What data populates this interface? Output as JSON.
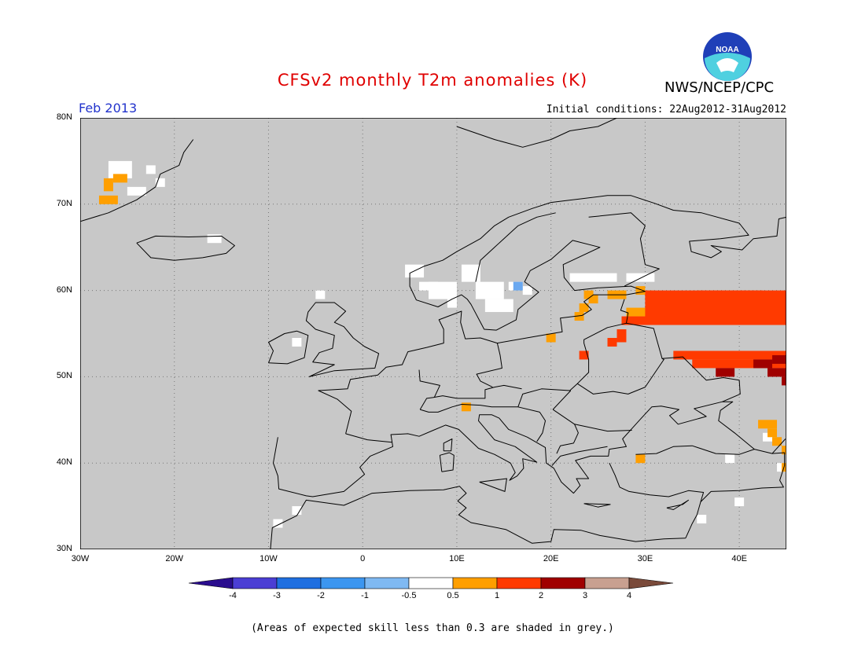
{
  "title": "CFSv2 monthly T2m anomalies (K)",
  "organization": "NWS/NCEP/CPC",
  "logo_text": "NOAA",
  "period": "Feb 2013",
  "initial_conditions": "Initial conditions: 22Aug2012-31Aug2012",
  "caption": "(Areas of expected skill less than 0.3 are shaded in grey.)",
  "map": {
    "lon_range": [
      -30,
      45
    ],
    "lat_range": [
      30,
      80
    ],
    "background_color": "#c8c8c8",
    "lat_labels": [
      "80N",
      "70N",
      "60N",
      "50N",
      "40N",
      "30N"
    ],
    "lon_labels": [
      "30W",
      "20W",
      "10W",
      "0",
      "10E",
      "20E",
      "30E",
      "40E"
    ]
  },
  "colorbar": {
    "labels": [
      "-4",
      "-3",
      "-2",
      "-1",
      "-0.5",
      "0.5",
      "1",
      "2",
      "3",
      "4"
    ],
    "colors": [
      "#2a0d8e",
      "#4b3ed4",
      "#1f6fe0",
      "#3c96f0",
      "#7fb9f2",
      "#ffffff",
      "#ff9f00",
      "#ff3a00",
      "#a00000",
      "#c8a090",
      "#7a4a3a"
    ]
  },
  "anomaly_legend": {
    "white": "-0.5 to 0.5",
    "orange": "0.5 to 1",
    "red": "1 to 2",
    "darkred": "2 to 3",
    "blue": "-1 to -0.5"
  }
}
